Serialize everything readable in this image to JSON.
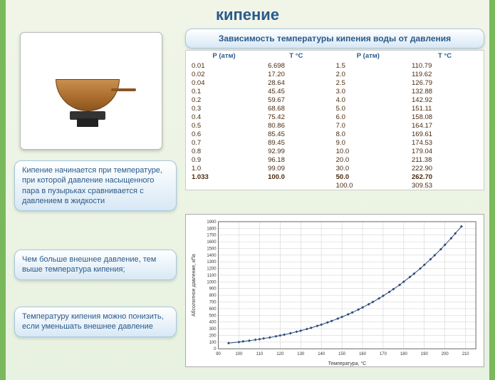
{
  "title": "кипение",
  "image_alt": "Кастрюля на плите",
  "text_cards": [
    "Кипение начинается при температуре, при которой давление насыщенного пара в пузырьках сравнивается с давлением в жидкости",
    "Чем больше внешнее давление, тем выше температура кипения;",
    "Температуру кипения можно понизить, если уменьшать внешнее давление"
  ],
  "table": {
    "title": "Зависимость температуры кипения воды от давления",
    "col_headers": [
      "Р (атм)",
      "Т °С",
      "Р (атм)",
      "Т °С"
    ],
    "rows": [
      [
        "0.01",
        "6.698",
        "1.5",
        "110.79"
      ],
      [
        "0.02",
        "17.20",
        "2.0",
        "119.62"
      ],
      [
        "0.04",
        "28.64",
        "2.5",
        "126.79"
      ],
      [
        "0.1",
        "45.45",
        "3.0",
        "132.88"
      ],
      [
        "0.2",
        "59.67",
        "4.0",
        "142.92"
      ],
      [
        "0.3",
        "68.68",
        "5.0",
        "151.11"
      ],
      [
        "0.4",
        "75.42",
        "6.0",
        "158.08"
      ],
      [
        "0.5",
        "80.86",
        "7.0",
        "164.17"
      ],
      [
        "0.6",
        "85.45",
        "8.0",
        "169.61"
      ],
      [
        "0.7",
        "89.45",
        "9.0",
        "174.53"
      ],
      [
        "0.8",
        "92.99",
        "10.0",
        "179.04"
      ],
      [
        "0.9",
        "96.18",
        "20.0",
        "211.38"
      ],
      [
        "1.0",
        "99.09",
        "30.0",
        "222.90"
      ],
      [
        "1.033",
        "100.0",
        "50.0",
        "262.70"
      ],
      [
        "",
        "",
        "100.0",
        "309.53"
      ]
    ],
    "bold_row_index": 13,
    "styling": {
      "header_color": "#2a5a8a",
      "cell_color": "#4a2a10",
      "bg": "#ffffff",
      "font_size": 9.5
    }
  },
  "chart": {
    "type": "scatter-line",
    "title": "",
    "xlabel": "Температура, °С",
    "ylabel": "Абсолютное давление, кПа",
    "xlim": [
      90,
      215
    ],
    "ylim": [
      0,
      1900
    ],
    "xtick_step": 10,
    "ytick_step": 100,
    "xticks": [
      90,
      100,
      110,
      120,
      130,
      140,
      150,
      160,
      170,
      180,
      190,
      200,
      210
    ],
    "yticks": [
      0,
      100,
      200,
      300,
      400,
      500,
      600,
      700,
      800,
      900,
      1000,
      1100,
      1200,
      1300,
      1400,
      1500,
      1600,
      1700,
      1800,
      1900
    ],
    "xticklabels_shown": [
      90,
      100,
      110,
      120,
      130,
      140,
      150,
      160,
      170,
      180,
      190,
      200,
      210
    ],
    "grid": true,
    "grid_color": "#cccccc",
    "marker": "diamond",
    "marker_size": 4,
    "marker_color": "#2a4a7a",
    "line_color": "#2a4a7a",
    "line_width": 1,
    "background_color": "#ffffff",
    "label_fontsize": 7,
    "tick_fontsize": 6,
    "points": [
      [
        95,
        85
      ],
      [
        100,
        101
      ],
      [
        102,
        110
      ],
      [
        105,
        121
      ],
      [
        108,
        135
      ],
      [
        110,
        143
      ],
      [
        112,
        155
      ],
      [
        115,
        169
      ],
      [
        118,
        187
      ],
      [
        120,
        199
      ],
      [
        122,
        212
      ],
      [
        125,
        232
      ],
      [
        128,
        255
      ],
      [
        130,
        270
      ],
      [
        133,
        296
      ],
      [
        135,
        313
      ],
      [
        138,
        342
      ],
      [
        140,
        361
      ],
      [
        143,
        394
      ],
      [
        145,
        416
      ],
      [
        148,
        451
      ],
      [
        150,
        476
      ],
      [
        153,
        515
      ],
      [
        155,
        543
      ],
      [
        158,
        587
      ],
      [
        160,
        618
      ],
      [
        163,
        666
      ],
      [
        165,
        700
      ],
      [
        168,
        753
      ],
      [
        170,
        792
      ],
      [
        173,
        850
      ],
      [
        175,
        892
      ],
      [
        178,
        955
      ],
      [
        180,
        1003
      ],
      [
        183,
        1074
      ],
      [
        185,
        1123
      ],
      [
        188,
        1199
      ],
      [
        190,
        1255
      ],
      [
        193,
        1338
      ],
      [
        195,
        1398
      ],
      [
        198,
        1488
      ],
      [
        200,
        1555
      ],
      [
        203,
        1652
      ],
      [
        205,
        1724
      ],
      [
        208,
        1828
      ]
    ]
  },
  "colors": {
    "accent_blue": "#2a5a8a",
    "border_green": "#7ab85c",
    "card_gradient_top": "#ffffff",
    "card_gradient_bot": "#d8e8f5",
    "bg_gradient_top": "#f0f5e8",
    "bg_gradient_bot": "#e8f2e0"
  }
}
